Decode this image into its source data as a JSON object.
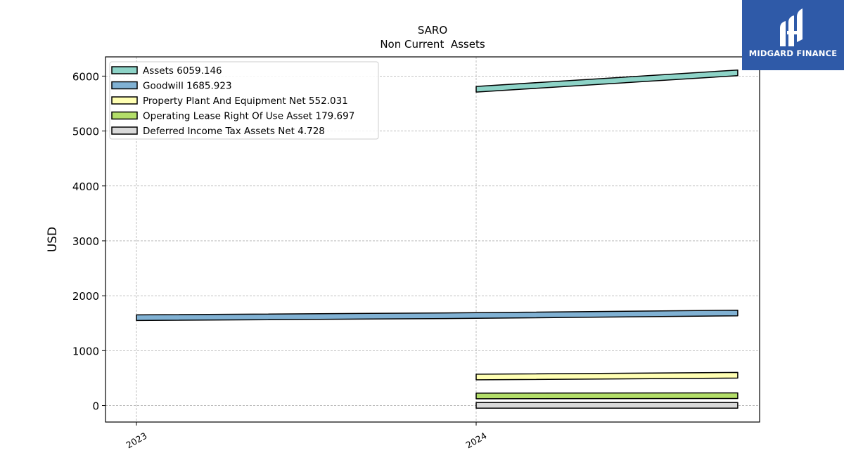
{
  "logo": {
    "text": "MIDGARD FINANCE",
    "background": "#2f5aa8"
  },
  "chart_data": {
    "type": "line",
    "title": "SARO",
    "subtitle": "Non Current  Assets",
    "xlabel": "",
    "ylabel": "USD",
    "x_ticks": [
      "2023",
      "2024"
    ],
    "y_ticks": [
      0,
      1000,
      2000,
      3000,
      4000,
      5000,
      6000
    ],
    "ylim": [
      -300,
      6350
    ],
    "grid": true,
    "legend_position": "top-left",
    "series": [
      {
        "name": "Assets",
        "legend_value": "6059.146",
        "color": "#8dd3c7",
        "points": [
          {
            "x": 2024,
            "y": 5760
          },
          {
            "x": 2024.77,
            "y": 6059.146
          }
        ]
      },
      {
        "name": "Goodwill",
        "legend_value": "1685.923",
        "color": "#80b1d3",
        "points": [
          {
            "x": 2023,
            "y": 1600
          },
          {
            "x": 2024,
            "y": 1640
          },
          {
            "x": 2024.77,
            "y": 1685.923
          }
        ]
      },
      {
        "name": "Property Plant And Equipment Net",
        "legend_value": "552.031",
        "color": "#ffffb3",
        "points": [
          {
            "x": 2024,
            "y": 520
          },
          {
            "x": 2024.77,
            "y": 552.031
          }
        ]
      },
      {
        "name": "Operating Lease Right Of Use Asset",
        "legend_value": "179.697",
        "color": "#b3de69",
        "points": [
          {
            "x": 2024,
            "y": 175
          },
          {
            "x": 2024.77,
            "y": 179.697
          }
        ]
      },
      {
        "name": "Deferred Income Tax Assets Net",
        "legend_value": "4.728",
        "color": "#d9d9d9",
        "points": [
          {
            "x": 2024,
            "y": 4.728
          },
          {
            "x": 2024.77,
            "y": 4.728
          }
        ]
      }
    ]
  }
}
